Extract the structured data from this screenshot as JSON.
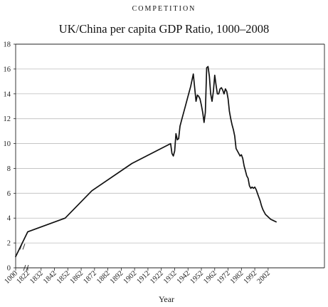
{
  "page": {
    "header": "COMPETITION",
    "title": "UK/China per capita GDP Ratio, 1000–2008"
  },
  "chart_data": {
    "type": "line",
    "title": "UK/China per capita GDP Ratio, 1000–2008",
    "xlabel": "Year",
    "ylabel": "",
    "ylim": [
      0,
      18
    ],
    "yticks": [
      0,
      2,
      4,
      6,
      8,
      10,
      12,
      14,
      16,
      18
    ],
    "xticks": [
      "1000",
      "1822",
      "1832",
      "1842",
      "1852",
      "1862",
      "1872",
      "1882",
      "1892",
      "1902",
      "1912",
      "1922",
      "1932",
      "1942",
      "1952",
      "1962",
      "1972",
      "1982",
      "1992",
      "2002"
    ],
    "axis_break": "between 1000 and 1822",
    "grid": "horizontal",
    "series": [
      {
        "x": [
          1000,
          1820,
          1850,
          1870,
          1900,
          1929,
          1930,
          1931,
          1932,
          1933,
          1934,
          1935,
          1936,
          1938,
          1940,
          1942,
          1944,
          1946,
          1948,
          1949,
          1950,
          1951,
          1952,
          1953,
          1954,
          1955,
          1956,
          1957,
          1958,
          1959,
          1960,
          1961,
          1962,
          1963,
          1964,
          1965,
          1966,
          1967,
          1968,
          1969,
          1970,
          1971,
          1972,
          1973,
          1974,
          1975,
          1976,
          1977,
          1978,
          1979,
          1980,
          1981,
          1982,
          1983,
          1984,
          1985,
          1986,
          1987,
          1988,
          1989,
          1990,
          1991,
          1992,
          1993,
          1994,
          1995,
          1996,
          1997,
          1998,
          1999,
          2000,
          2001,
          2002,
          2003,
          2004,
          2005,
          2006,
          2007,
          2008
        ],
        "y": [
          0.9,
          2.9,
          4.0,
          6.2,
          8.4,
          10.0,
          9.2,
          9.0,
          9.4,
          10.8,
          10.3,
          10.4,
          11.4,
          12.2,
          13.0,
          13.8,
          14.6,
          15.6,
          13.4,
          13.9,
          13.8,
          13.6,
          13.1,
          12.5,
          11.7,
          12.5,
          16.1,
          16.2,
          15.4,
          14.0,
          13.4,
          14.2,
          15.5,
          14.7,
          14.0,
          14.0,
          14.4,
          14.5,
          14.3,
          14.0,
          14.4,
          14.2,
          13.6,
          12.6,
          12.0,
          11.5,
          11.1,
          10.6,
          9.6,
          9.4,
          9.2,
          9.0,
          9.1,
          8.8,
          8.2,
          7.8,
          7.4,
          7.2,
          6.6,
          6.4,
          6.5,
          6.4,
          6.5,
          6.3,
          6.0,
          5.7,
          5.4,
          5.0,
          4.7,
          4.5,
          4.3,
          4.2,
          4.1,
          4.0,
          3.9,
          3.85,
          3.8,
          3.75,
          3.7
        ]
      }
    ]
  }
}
